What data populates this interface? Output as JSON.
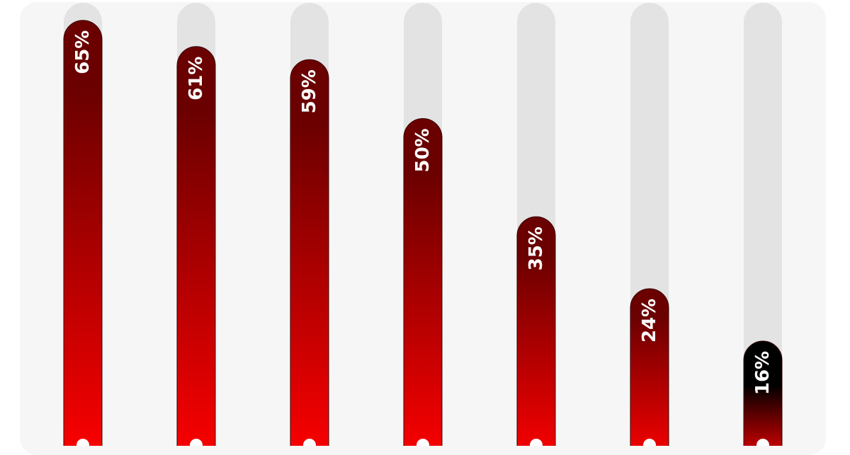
{
  "chart_data": {
    "type": "bar",
    "orientation": "vertical",
    "title": "",
    "xlabel": "",
    "ylabel": "",
    "ylim": [
      0,
      100
    ],
    "grid": false,
    "legend": "none",
    "values": [
      65,
      61,
      59,
      50,
      35,
      24,
      16
    ],
    "data_labels": [
      "65%",
      "61%",
      "59%",
      "50%",
      "35%",
      "24%",
      "16%"
    ],
    "colors": {
      "track": "#e3e3e3",
      "bar_dark": "#6a0000",
      "bar_bright": "#ff0000",
      "last_bar_dark": "#000000",
      "label_text": "#ffffff",
      "dot": "#ffffff",
      "background": "#f6f6f6"
    }
  }
}
